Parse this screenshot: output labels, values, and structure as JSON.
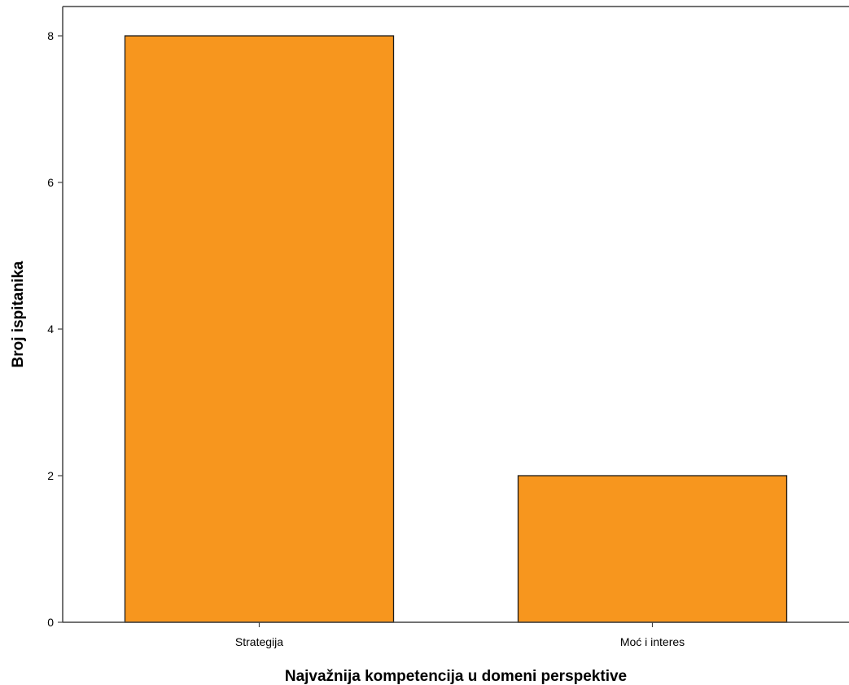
{
  "chart_data": {
    "type": "bar",
    "categories": [
      "Strategija",
      "Moć i interes"
    ],
    "values": [
      8,
      2
    ],
    "xlabel": "Najvažnija kompetencija u domeni perspektive",
    "ylabel": "Broj ispitanika",
    "ylim": [
      0,
      8.4
    ],
    "yticks": [
      0,
      2,
      4,
      6,
      8
    ],
    "grid": false,
    "legend": "none",
    "bar_color": "#f7961e",
    "bar_edge_color": "#1a1a1a",
    "axis_color": "#444444"
  }
}
